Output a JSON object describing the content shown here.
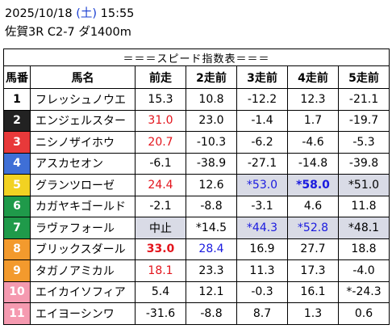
{
  "header": {
    "date": "2025/10/18",
    "dow": "(土)",
    "time": "15:55",
    "race": "佐賀3R C2-7 ダ1400m"
  },
  "table": {
    "title": "＝＝＝スピード指数表＝＝＝",
    "columns": [
      "馬番",
      "馬名",
      "前走",
      "2走前",
      "3走前",
      "4走前",
      "5走前"
    ],
    "rows": [
      {
        "no": "1",
        "color": "#ffffff",
        "text": "#000000",
        "name": "フレッシュノウエ",
        "cells": [
          {
            "v": "15.3"
          },
          {
            "v": "10.8"
          },
          {
            "v": "-12.2"
          },
          {
            "v": "12.3"
          },
          {
            "v": "-21.1"
          }
        ]
      },
      {
        "no": "2",
        "color": "#222222",
        "text": "#ffffff",
        "name": "エンジェルスター",
        "cells": [
          {
            "v": "31.0",
            "c": "red"
          },
          {
            "v": "23.0"
          },
          {
            "v": "-1.4"
          },
          {
            "v": "1.7"
          },
          {
            "v": "-19.7"
          }
        ]
      },
      {
        "no": "3",
        "color": "#e8393a",
        "text": "#ffffff",
        "name": "ニシノザイホウ",
        "cells": [
          {
            "v": "20.7",
            "c": "red"
          },
          {
            "v": "-10.3"
          },
          {
            "v": "-6.2"
          },
          {
            "v": "-4.6"
          },
          {
            "v": "-5.3"
          }
        ]
      },
      {
        "no": "4",
        "color": "#3f6fd6",
        "text": "#ffffff",
        "name": "アスカセオン",
        "cells": [
          {
            "v": "-6.1"
          },
          {
            "v": "-38.9"
          },
          {
            "v": "-27.1"
          },
          {
            "v": "-14.8"
          },
          {
            "v": "-39.8"
          }
        ]
      },
      {
        "no": "5",
        "color": "#f2d222",
        "text": "#ffffff",
        "name": "グランツローゼ",
        "cells": [
          {
            "v": "24.4",
            "c": "red"
          },
          {
            "v": "12.6"
          },
          {
            "v": "*53.0",
            "c": "blue",
            "hl": true
          },
          {
            "v": "*58.0",
            "c": "blue",
            "b": true,
            "hl": true
          },
          {
            "v": "*51.0",
            "hl": true
          }
        ]
      },
      {
        "no": "6",
        "color": "#1f9a4a",
        "text": "#ffffff",
        "name": "カガヤキゴールド",
        "cells": [
          {
            "v": "-2.1"
          },
          {
            "v": "-8.8"
          },
          {
            "v": "-3.1"
          },
          {
            "v": "4.6"
          },
          {
            "v": "11.8"
          }
        ]
      },
      {
        "no": "7",
        "color": "#1f9a4a",
        "text": "#ffffff",
        "name": "ラヴァフォール",
        "cells": [
          {
            "v": "中止",
            "hl": true
          },
          {
            "v": "*14.5"
          },
          {
            "v": "*44.3",
            "c": "blue",
            "hl": true
          },
          {
            "v": "*52.8",
            "c": "blue",
            "hl": true
          },
          {
            "v": "*48.1",
            "hl": true
          }
        ]
      },
      {
        "no": "8",
        "color": "#f39a2d",
        "text": "#ffffff",
        "name": "ブリックスダール",
        "cells": [
          {
            "v": "33.0",
            "c": "red",
            "b": true
          },
          {
            "v": "28.4",
            "c": "blue"
          },
          {
            "v": "16.9"
          },
          {
            "v": "27.7"
          },
          {
            "v": "18.8"
          }
        ]
      },
      {
        "no": "9",
        "color": "#f39a2d",
        "text": "#ffffff",
        "name": "タガノアミカル",
        "cells": [
          {
            "v": "18.1",
            "c": "red"
          },
          {
            "v": "23.3"
          },
          {
            "v": "11.3"
          },
          {
            "v": "17.3"
          },
          {
            "v": "-4.0"
          }
        ]
      },
      {
        "no": "10",
        "color": "#f59ab0",
        "text": "#ffffff",
        "name": "エイカイソフィア",
        "cells": [
          {
            "v": "5.4"
          },
          {
            "v": "12.1"
          },
          {
            "v": "-0.3"
          },
          {
            "v": "16.1"
          },
          {
            "v": "*-24.3"
          }
        ]
      },
      {
        "no": "11",
        "color": "#f59ab0",
        "text": "#ffffff",
        "name": "エイヨーシンワ",
        "cells": [
          {
            "v": "-31.6"
          },
          {
            "v": "-8.8"
          },
          {
            "v": "8.7"
          },
          {
            "v": "1.3"
          },
          {
            "v": "0.6"
          }
        ]
      }
    ]
  }
}
